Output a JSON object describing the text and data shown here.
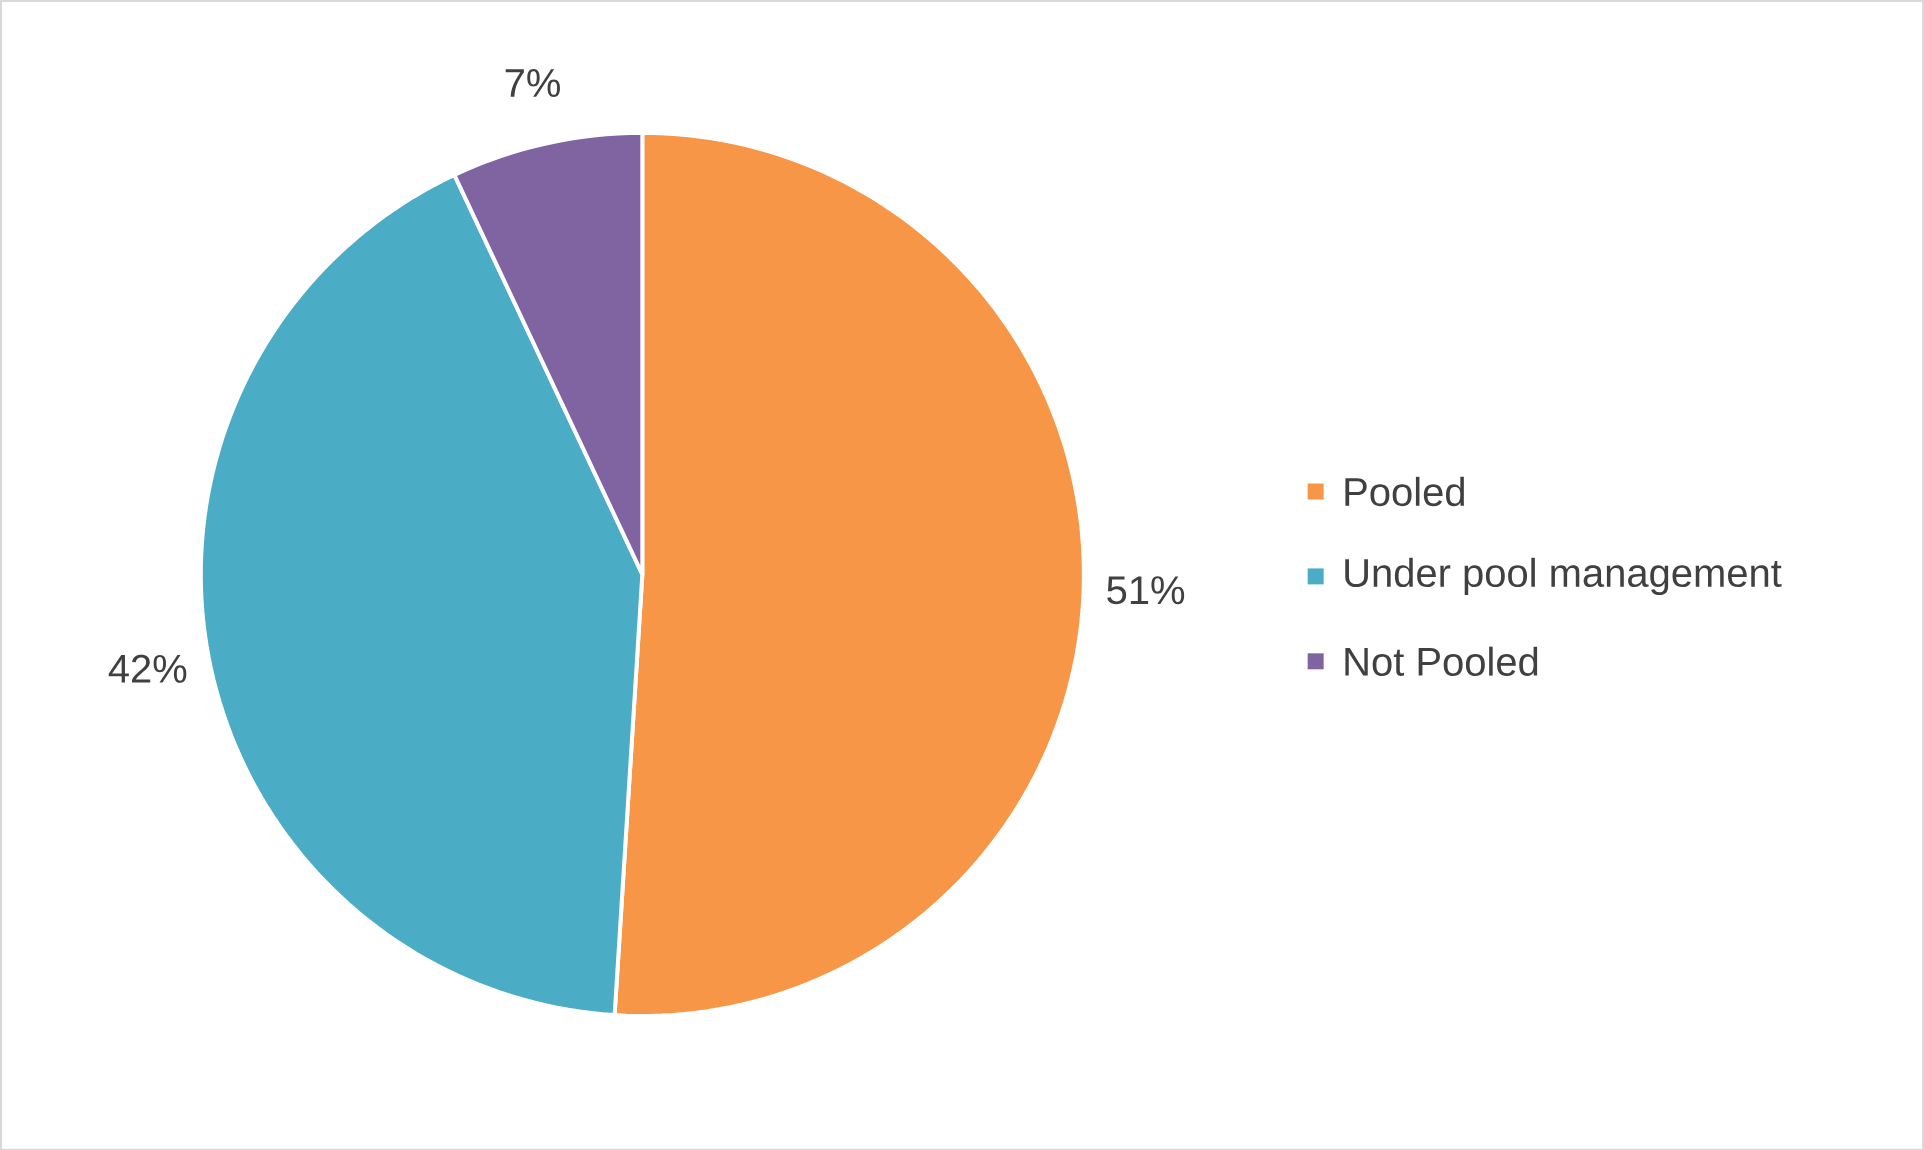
{
  "chart_data": {
    "type": "pie",
    "categories": [
      "Pooled",
      "Under pool management",
      "Not Pooled"
    ],
    "values": [
      51,
      42,
      7
    ],
    "colors": [
      "#f79646",
      "#4bacc6",
      "#8064a2"
    ],
    "value_labels": [
      "51%",
      "42%",
      "7%"
    ],
    "legend": "right"
  }
}
